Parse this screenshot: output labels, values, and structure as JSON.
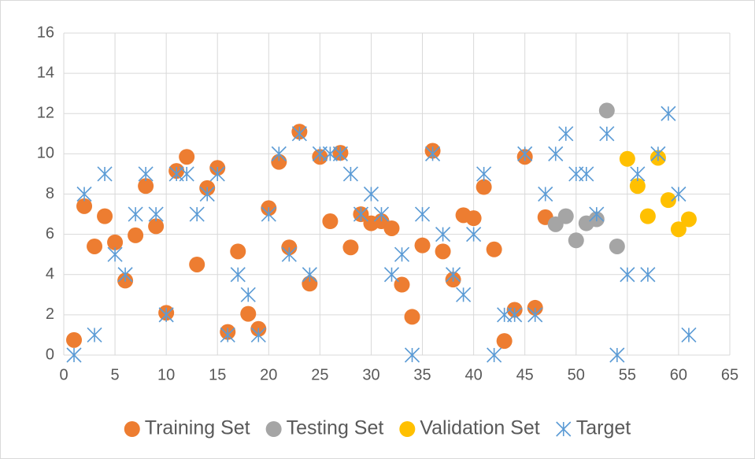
{
  "chart_data": {
    "type": "scatter",
    "xlim": [
      0,
      65
    ],
    "xticks": [
      0,
      5,
      10,
      15,
      20,
      25,
      30,
      35,
      40,
      45,
      50,
      55,
      60,
      65
    ],
    "ylim": [
      0,
      16
    ],
    "yticks": [
      0,
      2,
      4,
      6,
      8,
      10,
      12,
      14,
      16
    ],
    "grid": true,
    "legend": "bottom",
    "series": [
      {
        "name": "Training Set",
        "color": "#ed7d31",
        "marker": "circle",
        "x": [
          1,
          2,
          3,
          4,
          5,
          6,
          7,
          8,
          9,
          10,
          11,
          12,
          13,
          14,
          15,
          16,
          17,
          18,
          19,
          20,
          21,
          22,
          23,
          24,
          25,
          26,
          27,
          28,
          29,
          30,
          31,
          32,
          33,
          34,
          35,
          36,
          37,
          38,
          39,
          40,
          41,
          42,
          43,
          44,
          45,
          46,
          47
        ],
        "values": [
          0.75,
          7.4,
          5.4,
          6.9,
          5.6,
          3.7,
          5.95,
          8.4,
          6.4,
          2.1,
          9.15,
          9.85,
          4.5,
          8.3,
          9.3,
          1.15,
          5.15,
          2.05,
          1.3,
          7.3,
          9.6,
          5.35,
          11.1,
          3.55,
          9.85,
          6.65,
          10.05,
          5.35,
          7.0,
          6.55,
          6.65,
          6.3,
          3.5,
          1.9,
          5.45,
          10.15,
          5.15,
          3.75,
          6.95,
          6.8,
          8.35,
          5.25,
          0.7,
          2.25,
          9.85,
          2.35,
          6.85
        ]
      },
      {
        "name": "Testing Set",
        "color": "#a5a5a5",
        "marker": "circle",
        "x": [
          48,
          49,
          50,
          51,
          52,
          53,
          54
        ],
        "values": [
          6.5,
          6.9,
          5.7,
          6.55,
          6.75,
          12.15,
          5.4
        ]
      },
      {
        "name": "Validation Set",
        "color": "#ffc000",
        "marker": "circle",
        "x": [
          55,
          56,
          57,
          58,
          59,
          60,
          61
        ],
        "values": [
          9.75,
          8.4,
          6.9,
          9.8,
          7.7,
          6.25,
          6.75
        ]
      },
      {
        "name": "Target",
        "color": "#5b9bd5",
        "marker": "star",
        "x": [
          1,
          2,
          3,
          4,
          5,
          6,
          7,
          8,
          9,
          10,
          11,
          12,
          13,
          14,
          15,
          16,
          17,
          18,
          19,
          20,
          21,
          22,
          23,
          24,
          25,
          26,
          27,
          28,
          29,
          30,
          31,
          32,
          33,
          34,
          35,
          36,
          37,
          38,
          39,
          40,
          41,
          42,
          43,
          44,
          45,
          46,
          47,
          48,
          49,
          50,
          51,
          52,
          53,
          54,
          55,
          56,
          57,
          58,
          59,
          60,
          61
        ],
        "values": [
          0,
          8,
          1,
          9,
          5,
          4,
          7,
          9,
          7,
          2,
          9,
          9,
          7,
          8,
          9,
          1,
          4,
          3,
          1,
          7,
          10,
          5,
          11,
          4,
          10,
          10,
          10,
          9,
          7,
          8,
          7,
          4,
          5,
          0,
          7,
          10,
          6,
          4,
          3,
          6,
          9,
          0,
          2,
          2,
          10,
          2,
          8,
          10,
          11,
          9,
          9,
          7,
          11,
          0,
          4,
          9,
          4,
          10,
          12,
          8,
          1
        ]
      }
    ]
  }
}
